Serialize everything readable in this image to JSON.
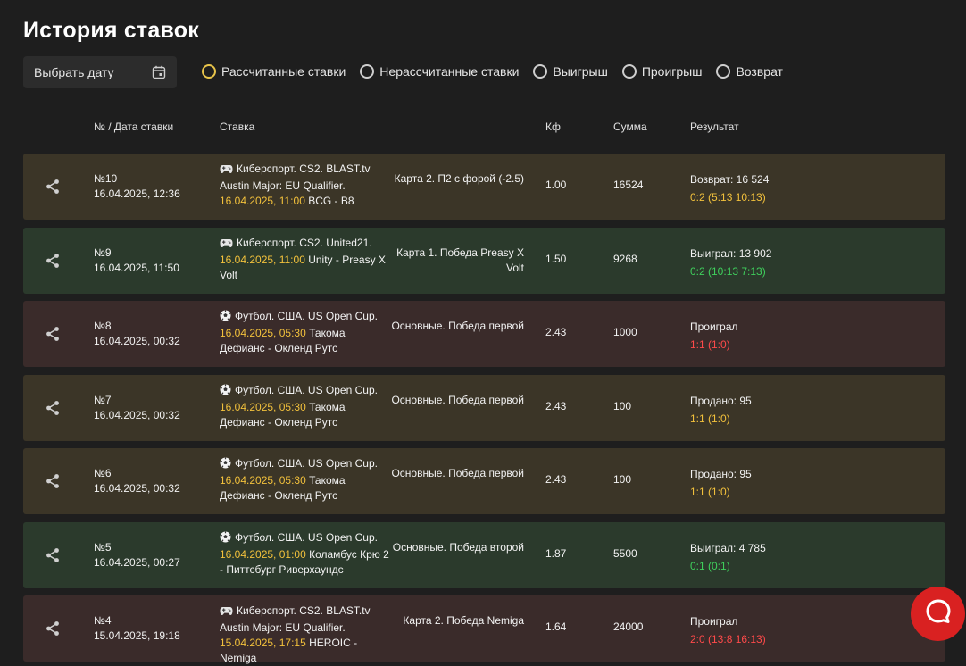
{
  "header": {
    "title": "История ставок"
  },
  "date_picker": {
    "label": "Выбрать дату"
  },
  "filters": [
    {
      "label": "Рассчитанные ставки",
      "active": true
    },
    {
      "label": "Нерассчитанные ставки",
      "active": false
    },
    {
      "label": "Выигрыш",
      "active": false
    },
    {
      "label": "Проигрыш",
      "active": false
    },
    {
      "label": "Возврат",
      "active": false
    }
  ],
  "table": {
    "columns": [
      "№ / Дата ставки",
      "Ставка",
      "Кф",
      "Сумма",
      "Результат"
    ],
    "rows": [
      {
        "num": "№10",
        "date": "16.04.2025, 12:36",
        "sport_icon": "gamepad-icon",
        "event": "Киберспорт. CS2. BLAST.tv Austin Major: EU Qualifier.",
        "event_time": "16.04.2025, 11:00",
        "teams": "BCG - B8",
        "market": "Карта 2. П2 с форой (-2.5)",
        "coef": "1.00",
        "sum": "16524",
        "result": "Возврат: 16 524",
        "score": "0:2 (5:13 10:13)",
        "status": "refund",
        "bg_color": "#3b3527"
      },
      {
        "num": "№9",
        "date": "16.04.2025, 11:50",
        "sport_icon": "gamepad-icon",
        "event": "Киберспорт. CS2. United21.",
        "event_time": "16.04.2025, 11:00",
        "teams": "Unity - Preasy X Volt",
        "market": "Карта 1. Победа Preasy X Volt",
        "coef": "1.50",
        "sum": "9268",
        "result": "Выиграл: 13 902",
        "score": "0:2 (10:13 7:13)",
        "status": "win",
        "bg_color": "#2b3a2c"
      },
      {
        "num": "№8",
        "date": "16.04.2025, 00:32",
        "sport_icon": "soccer-ball-icon",
        "event": "Футбол. США. US Open Cup.",
        "event_time": "16.04.2025, 05:30",
        "teams": "Такома Дефианс - Окленд Рутс",
        "market": "Основные. Победа первой",
        "coef": "2.43",
        "sum": "1000",
        "result": "Проиграл",
        "score": "1:1 (1:0)",
        "status": "loss",
        "bg_color": "#3a2b2a"
      },
      {
        "num": "№7",
        "date": "16.04.2025, 00:32",
        "sport_icon": "soccer-ball-icon",
        "event": "Футбол. США. US Open Cup.",
        "event_time": "16.04.2025, 05:30",
        "teams": "Такома Дефианс - Окленд Рутс",
        "market": "Основные. Победа первой",
        "coef": "2.43",
        "sum": "100",
        "result": "Продано: 95",
        "score": "1:1 (1:0)",
        "status": "sold",
        "bg_color": "#3b3527"
      },
      {
        "num": "№6",
        "date": "16.04.2025, 00:32",
        "sport_icon": "soccer-ball-icon",
        "event": "Футбол. США. US Open Cup.",
        "event_time": "16.04.2025, 05:30",
        "teams": "Такома Дефианс - Окленд Рутс",
        "market": "Основные. Победа первой",
        "coef": "2.43",
        "sum": "100",
        "result": "Продано: 95",
        "score": "1:1 (1:0)",
        "status": "sold",
        "bg_color": "#3b3527"
      },
      {
        "num": "№5",
        "date": "16.04.2025, 00:27",
        "sport_icon": "soccer-ball-icon",
        "event": "Футбол. США. US Open Cup.",
        "event_time": "16.04.2025, 01:00",
        "teams": "Коламбус Крю 2 - Питтсбург Риверхаундс",
        "market": "Основные. Победа второй",
        "coef": "1.87",
        "sum": "5500",
        "result": "Выиграл: 4 785",
        "score": "0:1 (0:1)",
        "status": "win",
        "bg_color": "#2b3a2c"
      },
      {
        "num": "№4",
        "date": "15.04.2025, 19:18",
        "sport_icon": "gamepad-icon",
        "event": "Киберспорт. CS2. BLAST.tv Austin Major: EU Qualifier.",
        "event_time": "15.04.2025, 17:15",
        "teams": "HEROIC - Nemiga",
        "market": "Карта 2. Победа Nemiga",
        "coef": "1.64",
        "sum": "24000",
        "result": "Проиграл",
        "score": "2:0 (13:8 16:13)",
        "status": "loss",
        "bg_color": "#3a2b2a"
      }
    ]
  },
  "colors": {
    "accent_yellow": "#f2c13c",
    "win_green": "#3fcf5c",
    "loss_red": "#ff4a4a",
    "chat_button": "#d92121"
  },
  "chat": {
    "icon": "chat-bubble-icon"
  }
}
